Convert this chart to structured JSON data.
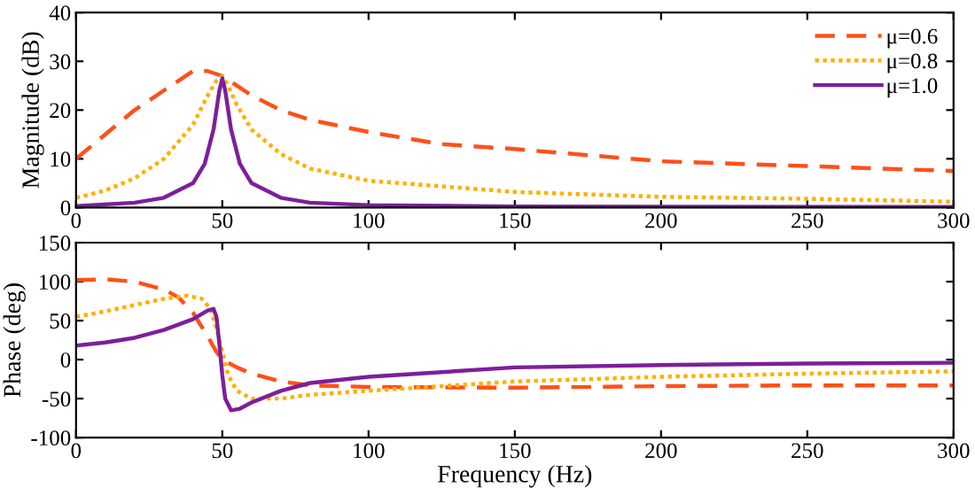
{
  "chart_data": [
    {
      "type": "line",
      "ylabel": "Magnitude (dB)",
      "xlim": [
        0,
        300
      ],
      "ylim": [
        0,
        40
      ],
      "xticks": [
        0,
        50,
        100,
        150,
        200,
        250,
        300
      ],
      "yticks": [
        0,
        10,
        20,
        30,
        40
      ],
      "grid": false,
      "legend": "top right",
      "series": [
        {
          "name": "μ=0.6",
          "color": "#ff5019",
          "line_style": "dashed",
          "x": [
            0,
            10,
            20,
            30,
            40,
            45,
            50,
            60,
            70,
            80,
            100,
            125,
            150,
            200,
            250,
            300
          ],
          "values": [
            10,
            15,
            20,
            24,
            28,
            28,
            27,
            23,
            20,
            18,
            15.5,
            13,
            12,
            9.5,
            8.5,
            7.5
          ]
        },
        {
          "name": "μ=0.8",
          "color": "#ffb000",
          "line_style": "dotted",
          "x": [
            0,
            10,
            20,
            30,
            40,
            45,
            48,
            50,
            52,
            55,
            60,
            70,
            80,
            100,
            150,
            200,
            250,
            300
          ],
          "values": [
            2,
            3.5,
            6,
            10,
            17,
            23,
            26,
            27,
            25,
            21,
            16,
            11,
            8,
            5.5,
            3.2,
            2.2,
            1.8,
            1.2
          ]
        },
        {
          "name": "μ=1.0",
          "color": "#7e1e9c",
          "line_style": "solid",
          "x": [
            0,
            20,
            30,
            40,
            44,
            47,
            49,
            50,
            51,
            53,
            56,
            60,
            70,
            80,
            100,
            150,
            300
          ],
          "values": [
            0.3,
            1,
            2,
            5,
            9,
            16,
            24,
            26.5,
            24,
            16,
            9,
            5,
            2,
            1,
            0.5,
            0.2,
            0.1
          ]
        }
      ]
    },
    {
      "type": "line",
      "xlabel": "Frequency (Hz)",
      "ylabel": "Phase (deg)",
      "xlim": [
        0,
        300
      ],
      "ylim": [
        -100,
        150
      ],
      "xticks": [
        0,
        50,
        100,
        150,
        200,
        250,
        300
      ],
      "yticks": [
        -100,
        -50,
        0,
        50,
        100,
        150
      ],
      "grid": false,
      "series": [
        {
          "color": "#ff5019",
          "line_style": "dashed",
          "x": [
            0,
            10,
            20,
            30,
            35,
            40,
            45,
            48,
            50,
            55,
            60,
            70,
            80,
            100,
            150,
            200,
            250,
            300
          ],
          "values": [
            102,
            103,
            100,
            90,
            80,
            60,
            30,
            10,
            0,
            -10,
            -18,
            -28,
            -33,
            -35,
            -36,
            -34,
            -33,
            -33
          ]
        },
        {
          "color": "#ffb000",
          "line_style": "dotted",
          "x": [
            0,
            10,
            20,
            30,
            38,
            43,
            46,
            48,
            50,
            52,
            55,
            60,
            70,
            80,
            100,
            150,
            200,
            250,
            300
          ],
          "values": [
            55,
            62,
            70,
            78,
            82,
            78,
            65,
            40,
            10,
            -20,
            -40,
            -50,
            -50,
            -45,
            -40,
            -28,
            -22,
            -18,
            -15
          ]
        },
        {
          "color": "#7e1e9c",
          "line_style": "solid",
          "x": [
            0,
            10,
            20,
            30,
            40,
            45,
            47,
            48,
            49,
            50,
            51,
            53,
            56,
            60,
            70,
            80,
            100,
            150,
            200,
            250,
            300
          ],
          "values": [
            18,
            22,
            28,
            38,
            52,
            63,
            65,
            55,
            20,
            -20,
            -50,
            -65,
            -63,
            -55,
            -40,
            -30,
            -22,
            -10,
            -7,
            -5,
            -4
          ]
        }
      ]
    }
  ]
}
